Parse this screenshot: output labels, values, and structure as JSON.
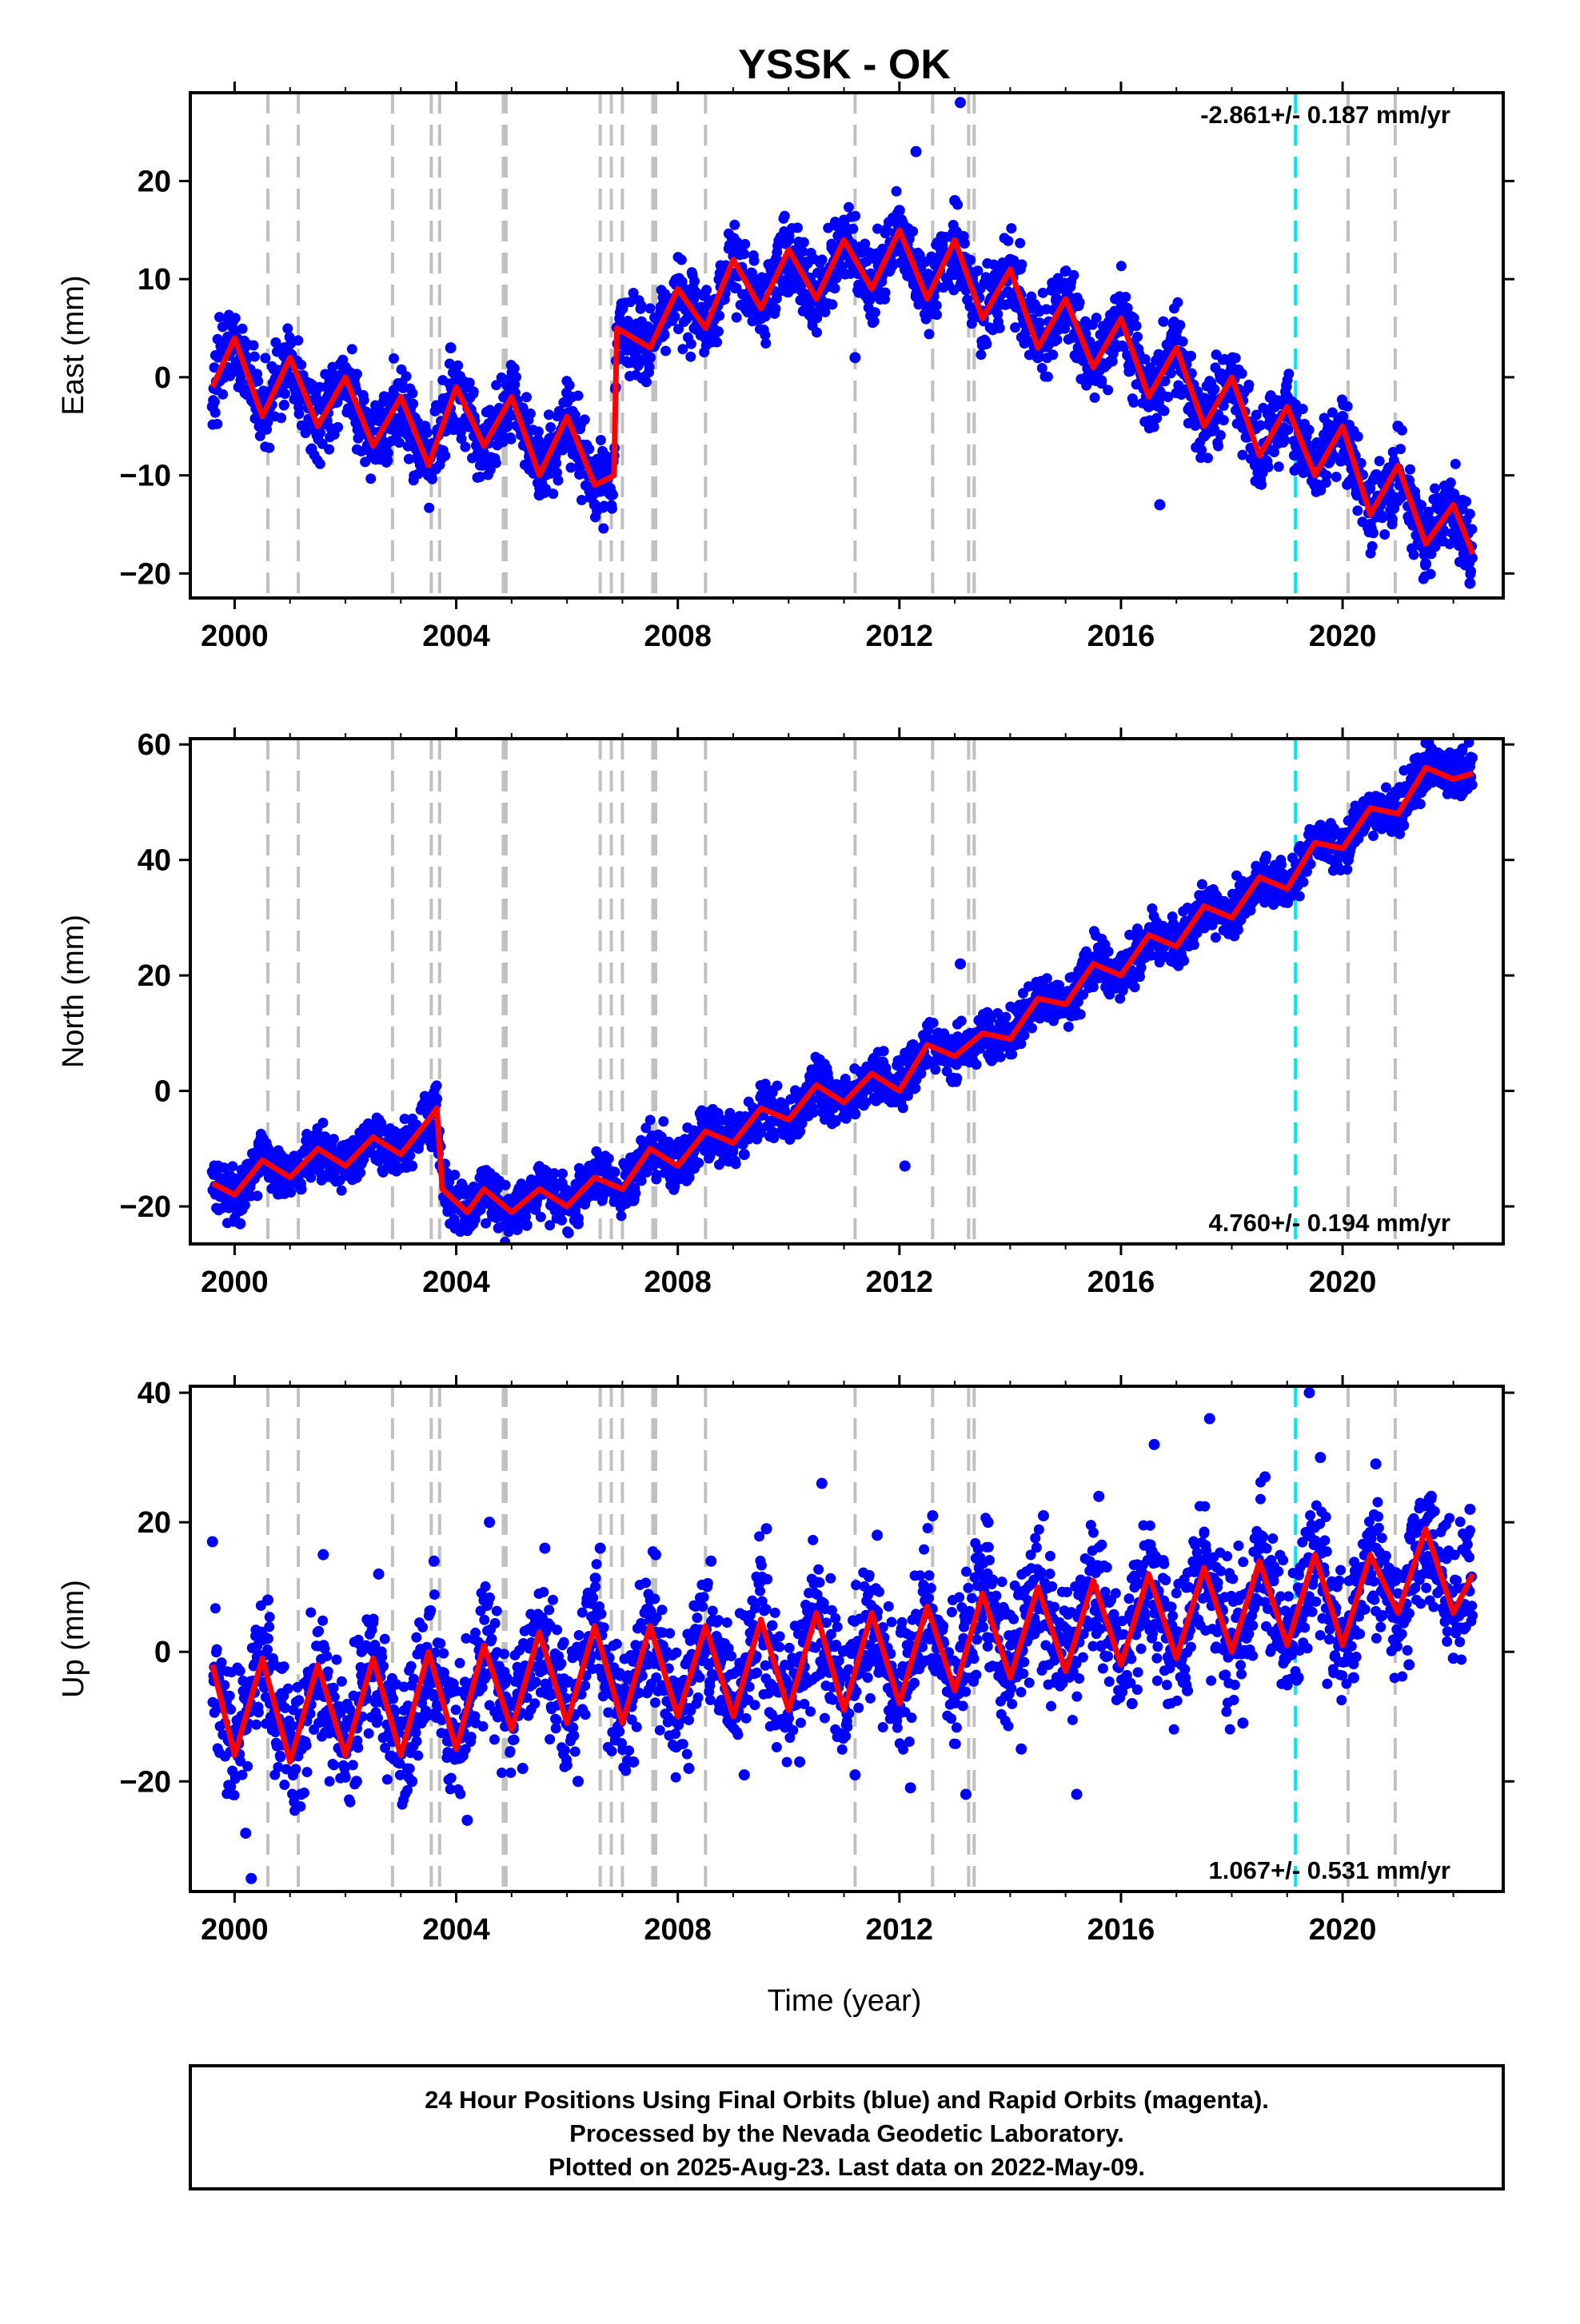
{
  "figure": {
    "title": "YSSK - OK",
    "xlabel": "Time (year)",
    "footer": [
      "24 Hour Positions Using Final Orbits (blue) and Rapid Orbits (magenta).",
      "Processed by the Nevada Geodetic Laboratory.",
      "Plotted on 2025-Aug-23. Last data on 2022-May-09."
    ]
  },
  "colors": {
    "points": "#0000ff",
    "model": "#ff0000",
    "equipment_change": "#c0c0c0",
    "event": "#00e5ee"
  },
  "chart_data": [
    {
      "type": "scatter",
      "ylabel": "East (mm)",
      "rate_label": "-2.861+/- 0.187 mm/yr",
      "rate_position": "top-right",
      "xlim": [
        1999.2,
        2022.9
      ],
      "ylim": [
        -22.5,
        29
      ],
      "xticks": [
        2000,
        2004,
        2008,
        2012,
        2016,
        2020
      ],
      "xtick_labels": [
        "2000",
        "2004",
        "2008",
        "2012",
        "2016",
        "2020"
      ],
      "yticks": [
        -20,
        -10,
        0,
        10,
        20
      ],
      "ytick_labels": [
        "−20",
        "−10",
        "0",
        "10",
        "20"
      ],
      "series": [
        {
          "kind": "model",
          "x": [
            1999.6,
            2000.0,
            2000.5,
            2001.0,
            2001.5,
            2002.0,
            2002.5,
            2003.0,
            2003.5,
            2004.0,
            2004.5,
            2005.0,
            2005.5,
            2006.0,
            2006.5,
            2006.85,
            2006.9,
            2007.5,
            2008.0,
            2008.5,
            2009.0,
            2009.5,
            2010.0,
            2010.5,
            2011.0,
            2011.5,
            2012.0,
            2012.5,
            2013.0,
            2013.5,
            2014.0,
            2014.5,
            2015.0,
            2015.5,
            2016.0,
            2016.5,
            2017.0,
            2017.5,
            2018.0,
            2018.5,
            2019.0,
            2019.5,
            2020.0,
            2020.5,
            2021.0,
            2021.5,
            2022.0,
            2022.35
          ],
          "y": [
            -1,
            4,
            -4,
            2,
            -5,
            0,
            -7,
            -2,
            -9,
            -1,
            -7,
            -2,
            -10,
            -4,
            -11,
            -10,
            5,
            3,
            9,
            5,
            12,
            7,
            13,
            8,
            14,
            9,
            15,
            8,
            14,
            6,
            11,
            3,
            8,
            1,
            6,
            -2,
            3,
            -5,
            0,
            -8,
            -3,
            -10,
            -5,
            -14,
            -9,
            -17,
            -13,
            -18
          ]
        },
        {
          "kind": "daily_positions",
          "x": [
            1999.6,
            1999.9,
            2000.0,
            2000.5,
            2000.9,
            2001.5,
            2002.0,
            2002.5,
            2003.0,
            2003.5,
            2003.9,
            2004.5,
            2005.0,
            2005.5,
            2006.0,
            2006.5,
            2006.8,
            2007.0,
            2007.5,
            2008.0,
            2008.5,
            2009.0,
            2009.5,
            2010.0,
            2010.5,
            2011.0,
            2011.2,
            2011.5,
            2012.0,
            2012.3,
            2012.6,
            2013.0,
            2013.1,
            2013.5,
            2014.0,
            2014.5,
            2015.0,
            2015.5,
            2016.0,
            2016.5,
            2016.7,
            2017.0,
            2017.5,
            2018.0,
            2018.5,
            2019.0,
            2019.5,
            2020.0,
            2020.5,
            2021.0,
            2021.5,
            2022.0,
            2022.3
          ],
          "y": [
            -3,
            6,
            4,
            -5,
            3,
            -6,
            1,
            -8,
            -3,
            -10,
            3,
            -8,
            0,
            -12,
            -4,
            -13,
            -12,
            7,
            2,
            10,
            4,
            13,
            6,
            14,
            9,
            16,
            2,
            10,
            17,
            23,
            7,
            18,
            28,
            6,
            12,
            2,
            9,
            0,
            7,
            -3,
            -13,
            4,
            -6,
            1,
            -9,
            -2,
            -11,
            -4,
            -15,
            -5,
            -19,
            -12,
            -21
          ]
        }
      ]
    },
    {
      "type": "scatter",
      "ylabel": "North (mm)",
      "rate_label": "4.760+/- 0.194 mm/yr",
      "rate_position": "bottom-right",
      "xlim": [
        1999.2,
        2022.9
      ],
      "ylim": [
        -26.5,
        61
      ],
      "xticks": [
        2000,
        2004,
        2008,
        2012,
        2016,
        2020
      ],
      "xtick_labels": [
        "2000",
        "2004",
        "2008",
        "2012",
        "2016",
        "2020"
      ],
      "yticks": [
        -20,
        0,
        20,
        40,
        60
      ],
      "ytick_labels": [
        "−20",
        "0",
        "20",
        "40",
        "60"
      ],
      "series": [
        {
          "kind": "model",
          "x": [
            1999.6,
            2000.0,
            2000.5,
            2001.0,
            2001.5,
            2002.0,
            2002.5,
            2003.0,
            2003.5,
            2003.65,
            2003.75,
            2004.2,
            2004.5,
            2005.0,
            2005.5,
            2006.0,
            2006.5,
            2007.0,
            2007.5,
            2008.0,
            2008.5,
            2009.0,
            2009.5,
            2010.0,
            2010.5,
            2011.0,
            2011.5,
            2012.0,
            2012.5,
            2013.0,
            2013.5,
            2014.0,
            2014.5,
            2015.0,
            2015.5,
            2016.0,
            2016.5,
            2017.0,
            2017.5,
            2018.0,
            2018.5,
            2019.0,
            2019.5,
            2020.0,
            2020.5,
            2021.0,
            2021.5,
            2022.0,
            2022.35
          ],
          "y": [
            -16,
            -18,
            -12,
            -15,
            -10,
            -13,
            -8,
            -11,
            -5,
            -3,
            -17,
            -21,
            -17,
            -21,
            -17,
            -20,
            -15,
            -17,
            -10,
            -13,
            -7,
            -9,
            -3,
            -5,
            1,
            -2,
            3,
            0,
            8,
            6,
            10,
            9,
            16,
            15,
            22,
            20,
            27,
            25,
            32,
            30,
            37,
            35,
            43,
            42,
            49,
            48,
            56,
            54,
            55
          ]
        },
        {
          "kind": "daily_positions",
          "x": [
            1999.6,
            2000.1,
            2000.6,
            2001.2,
            2001.6,
            2002.2,
            2002.6,
            2003.2,
            2003.6,
            2003.9,
            2004.3,
            2004.7,
            2005.1,
            2005.7,
            2006.2,
            2006.7,
            2007.2,
            2007.7,
            2008.2,
            2008.7,
            2009.2,
            2009.7,
            2010.2,
            2010.7,
            2011.2,
            2011.7,
            2012.1,
            2012.3,
            2012.7,
            2013.1,
            2013.6,
            2014.1,
            2014.6,
            2015.1,
            2015.6,
            2016.1,
            2016.6,
            2017.1,
            2017.6,
            2018.1,
            2018.6,
            2019.1,
            2019.6,
            2020.1,
            2020.6,
            2021.1,
            2021.6,
            2022.0,
            2022.3
          ],
          "y": [
            -14,
            -23,
            -10,
            -17,
            -8,
            -15,
            -5,
            -13,
            -2,
            -19,
            -23,
            -16,
            -24,
            -15,
            -23,
            -12,
            -19,
            -8,
            -15,
            -4,
            -11,
            0,
            -7,
            3,
            -4,
            5,
            -13,
            2,
            10,
            22,
            13,
            8,
            18,
            13,
            24,
            19,
            28,
            23,
            34,
            29,
            40,
            34,
            46,
            40,
            51,
            46,
            59,
            53,
            57
          ]
        }
      ]
    },
    {
      "type": "scatter",
      "ylabel": "Up (mm)",
      "rate_label": "1.067+/- 0.531 mm/yr",
      "rate_position": "bottom-right",
      "xlim": [
        1999.2,
        2022.9
      ],
      "ylim": [
        -37,
        41
      ],
      "xticks": [
        2000,
        2004,
        2008,
        2012,
        2016,
        2020
      ],
      "xtick_labels": [
        "2000",
        "2004",
        "2008",
        "2012",
        "2016",
        "2020"
      ],
      "yticks": [
        -20,
        0,
        20,
        40
      ],
      "ytick_labels": [
        "−20",
        "0",
        "20",
        "40"
      ],
      "series": [
        {
          "kind": "model",
          "x": [
            1999.6,
            2000.0,
            2000.5,
            2001.0,
            2001.5,
            2002.0,
            2002.5,
            2003.0,
            2003.5,
            2004.0,
            2004.5,
            2005.0,
            2005.5,
            2006.0,
            2006.5,
            2007.0,
            2007.5,
            2008.0,
            2008.5,
            2009.0,
            2009.5,
            2010.0,
            2010.5,
            2011.0,
            2011.5,
            2012.0,
            2012.5,
            2013.0,
            2013.5,
            2014.0,
            2014.5,
            2015.0,
            2015.5,
            2016.0,
            2016.5,
            2017.0,
            2017.5,
            2018.0,
            2018.5,
            2019.0,
            2019.5,
            2020.0,
            2020.5,
            2021.0,
            2021.5,
            2022.0,
            2022.35
          ],
          "y": [
            -2,
            -16,
            -1,
            -17,
            -2,
            -16,
            -1,
            -16,
            0,
            -15,
            1,
            -12,
            3,
            -11,
            4,
            -11,
            4,
            -10,
            4,
            -10,
            5,
            -9,
            6,
            -9,
            6,
            -8,
            7,
            -6,
            9,
            -4,
            10,
            -3,
            11,
            -2,
            12,
            -1,
            13,
            0,
            14,
            1,
            15,
            1,
            15,
            6,
            19,
            6,
            12
          ]
        },
        {
          "kind": "daily_positions",
          "x": [
            1999.6,
            2000.2,
            2000.3,
            2000.6,
            2001.2,
            2001.6,
            2002.2,
            2002.6,
            2003.2,
            2003.6,
            2004.2,
            2004.6,
            2005.2,
            2005.6,
            2006.2,
            2006.6,
            2007.2,
            2007.6,
            2008.2,
            2008.6,
            2009.2,
            2009.6,
            2010.2,
            2010.6,
            2011.2,
            2011.6,
            2012.2,
            2012.6,
            2013.2,
            2013.6,
            2014.2,
            2014.6,
            2015.2,
            2015.6,
            2016.2,
            2016.6,
            2017.2,
            2017.6,
            2018.2,
            2018.6,
            2019.2,
            2019.4,
            2019.6,
            2020.2,
            2020.6,
            2021.2,
            2021.6,
            2022.0,
            2022.3
          ],
          "y": [
            17,
            -28,
            -35,
            8,
            -22,
            15,
            -20,
            12,
            -20,
            14,
            -26,
            20,
            -18,
            16,
            -20,
            16,
            -17,
            15,
            -18,
            14,
            -19,
            19,
            -17,
            26,
            -19,
            18,
            -21,
            21,
            -22,
            20,
            -15,
            21,
            -22,
            24,
            -8,
            32,
            -6,
            36,
            -11,
            27,
            -4,
            40,
            30,
            -4,
            29,
            -2,
            24,
            -1,
            22
          ]
        }
      ]
    }
  ],
  "equipment_change_years": [
    2000.6,
    2001.15,
    2002.85,
    2003.55,
    2003.7,
    2004.85,
    2004.9,
    2006.6,
    2006.8,
    2007.0,
    2007.55,
    2007.6,
    2008.5,
    2011.2,
    2012.6,
    2013.25,
    2013.35,
    2020.1,
    2020.95
  ],
  "event_years": [
    2019.15
  ]
}
